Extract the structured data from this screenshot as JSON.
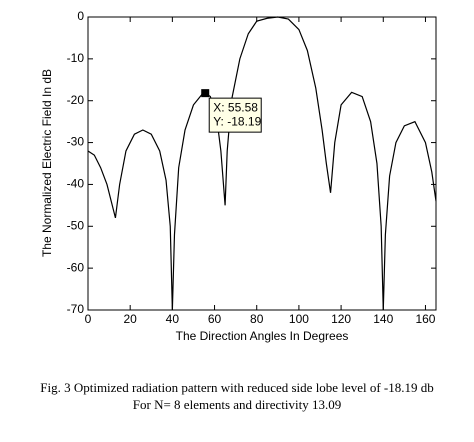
{
  "chart_data": {
    "type": "line",
    "ylabel": "The Normalized Electric Field In dB",
    "xlabel": "The Direction Angles In Degrees",
    "x": [
      0,
      3,
      6,
      9,
      12,
      13,
      15,
      18,
      22,
      26,
      30,
      34,
      37,
      39,
      40,
      41,
      43,
      46,
      50,
      54,
      55.58,
      58,
      61,
      63,
      65,
      66,
      68,
      72,
      76,
      80,
      85,
      90,
      95,
      100,
      104,
      108,
      111,
      113,
      115,
      117,
      120,
      125,
      130,
      134,
      137,
      139,
      140,
      141,
      143,
      146,
      150,
      155,
      160,
      163,
      165
    ],
    "values": [
      -32,
      -33,
      -36,
      -40,
      -46,
      -48,
      -40,
      -32,
      -28,
      -27,
      -28,
      -32,
      -39,
      -50,
      -70,
      -52,
      -36,
      -27,
      -21,
      -18.5,
      -18.19,
      -19,
      -24,
      -32,
      -45,
      -32,
      -20,
      -10,
      -4,
      -1,
      -0.3,
      0,
      -0.5,
      -3,
      -8,
      -17,
      -27,
      -35,
      -42,
      -30,
      -21,
      -18,
      -19,
      -25,
      -35,
      -50,
      -70,
      -52,
      -38,
      -30,
      -26,
      -25,
      -30,
      -37,
      -44
    ],
    "color": "#000000",
    "xlim": [
      0,
      165
    ],
    "ylim": [
      -70,
      0
    ],
    "xticks": [
      0,
      20,
      40,
      60,
      80,
      100,
      120,
      140,
      160
    ],
    "yticks": [
      0,
      -10,
      -20,
      -30,
      -40,
      -50,
      -60,
      -70
    ],
    "grid": false,
    "annotation": {
      "x": 55.58,
      "y": -18.19,
      "x_label": "X: 55.58",
      "y_label": "Y: -18.19"
    },
    "caption": [
      "Fig. 3 Optimized radiation pattern with reduced side lobe level of -18.19 db",
      "For N= 8 elements and directivity 13.09"
    ]
  }
}
